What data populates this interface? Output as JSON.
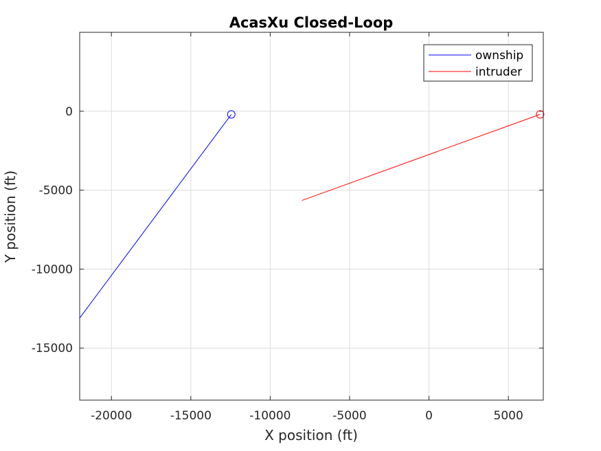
{
  "chart_data": {
    "type": "line",
    "title": "AcasXu Closed-Loop",
    "xlabel": "X position (ft)",
    "ylabel": "Y position (ft)",
    "xlim": [
      -22000,
      7200
    ],
    "ylim": [
      -18300,
      5000
    ],
    "xticks": [
      -20000,
      -15000,
      -10000,
      -5000,
      0,
      5000
    ],
    "yticks": [
      0,
      -5000,
      -10000,
      -15000
    ],
    "xtick_labels": [
      "-20000",
      "-15000",
      "-10000",
      "-5000",
      "0",
      "5000"
    ],
    "ytick_labels": [
      "0",
      "-5000",
      "-10000",
      "-15000"
    ],
    "grid": true,
    "legend_position": "top-right",
    "series": [
      {
        "name": "ownship",
        "color": "#0000ff",
        "x": [
          -22000,
          -12450
        ],
        "y": [
          -13100,
          -200
        ],
        "end_marker": "circle"
      },
      {
        "name": "intruder",
        "color": "#ff0000",
        "x": [
          -8000,
          7000
        ],
        "y": [
          -5650,
          -200
        ],
        "end_marker": "circle"
      }
    ]
  }
}
